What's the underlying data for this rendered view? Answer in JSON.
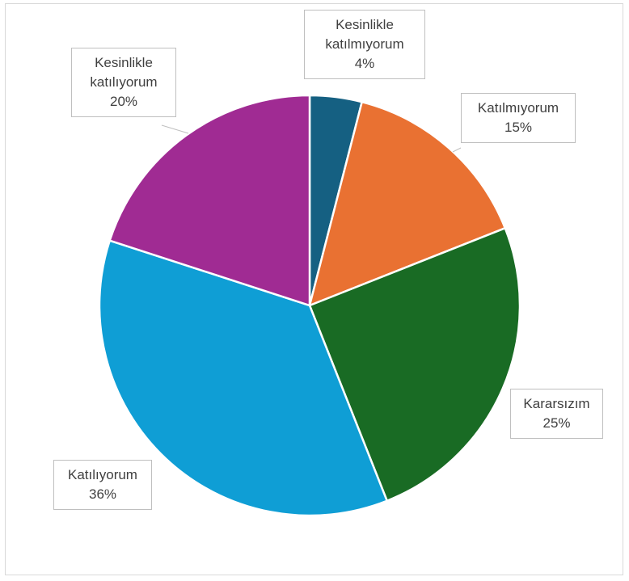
{
  "chart_data": {
    "type": "pie",
    "categories": [
      "Kesinlikle katılmıyorum",
      "Katılmıyorum",
      "Kararsızım",
      "Katılıyorum",
      "Kesinlikle katılıyorum"
    ],
    "values": [
      4,
      15,
      25,
      36,
      20
    ],
    "value_labels": [
      "4%",
      "15%",
      "25%",
      "36%",
      "20%"
    ],
    "colors": [
      "#156082",
      "#e97132",
      "#196b24",
      "#0f9ed5",
      "#a02b93"
    ]
  }
}
